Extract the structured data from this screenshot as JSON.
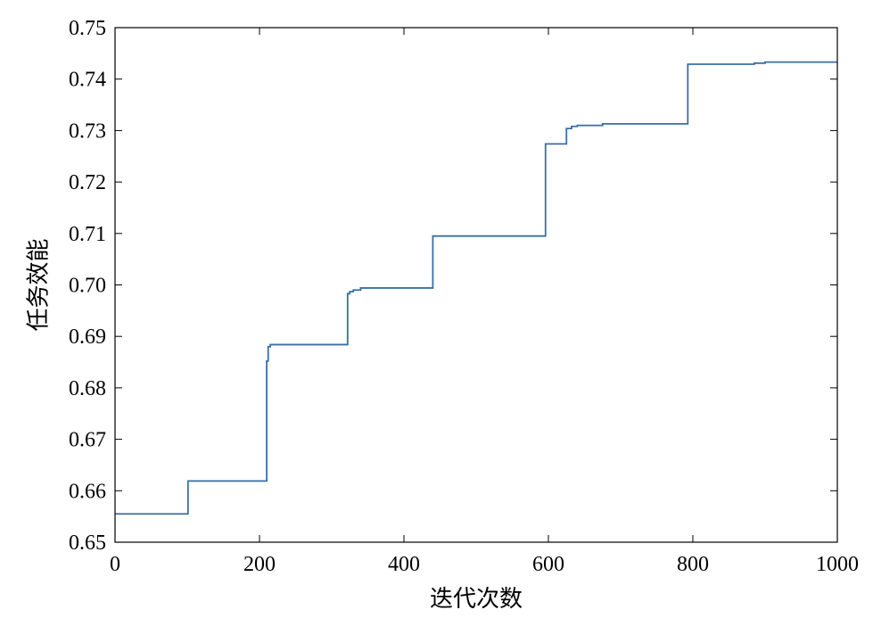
{
  "chart_data": {
    "type": "line",
    "title": "",
    "xlabel": "迭代次数",
    "ylabel": "任务效能",
    "xlim": [
      0,
      1000
    ],
    "ylim": [
      0.65,
      0.75
    ],
    "x_ticks": [
      "0",
      "200",
      "400",
      "600",
      "800",
      "1000"
    ],
    "y_ticks": [
      "0.65",
      "0.66",
      "0.67",
      "0.68",
      "0.69",
      "0.70",
      "0.71",
      "0.72",
      "0.73",
      "0.74",
      "0.75"
    ],
    "grid": false,
    "legend": "none",
    "series": [
      {
        "color": "#3a6ea5",
        "step": true,
        "points": [
          [
            0,
            0.6555
          ],
          [
            101,
            0.6555
          ],
          [
            101,
            0.6619
          ],
          [
            210,
            0.6619
          ],
          [
            210,
            0.6852
          ],
          [
            212,
            0.6852
          ],
          [
            212,
            0.688
          ],
          [
            215,
            0.688
          ],
          [
            215,
            0.6884
          ],
          [
            322,
            0.6884
          ],
          [
            322,
            0.6983
          ],
          [
            325,
            0.6983
          ],
          [
            325,
            0.6987
          ],
          [
            330,
            0.6987
          ],
          [
            330,
            0.699
          ],
          [
            340,
            0.699
          ],
          [
            340,
            0.6994
          ],
          [
            440,
            0.6994
          ],
          [
            440,
            0.7095
          ],
          [
            596,
            0.7095
          ],
          [
            596,
            0.7274
          ],
          [
            625,
            0.7274
          ],
          [
            625,
            0.7304
          ],
          [
            632,
            0.7304
          ],
          [
            632,
            0.7308
          ],
          [
            640,
            0.7308
          ],
          [
            640,
            0.731
          ],
          [
            675,
            0.731
          ],
          [
            675,
            0.7313
          ],
          [
            793,
            0.7313
          ],
          [
            793,
            0.7429
          ],
          [
            885,
            0.7429
          ],
          [
            885,
            0.7431
          ],
          [
            900,
            0.7431
          ],
          [
            900,
            0.7433
          ],
          [
            1000,
            0.7433
          ]
        ]
      }
    ]
  }
}
